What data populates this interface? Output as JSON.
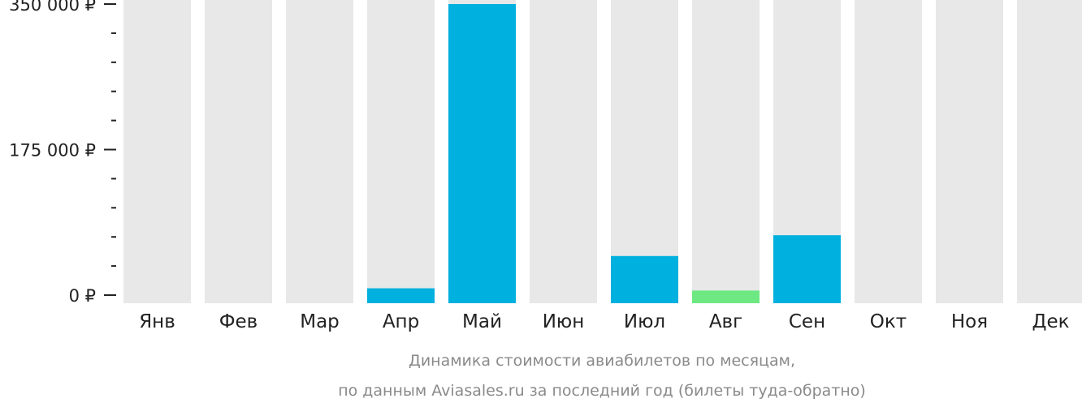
{
  "chart_data": {
    "type": "bar",
    "categories": [
      "Янв",
      "Фев",
      "Мар",
      "Апр",
      "Май",
      "Июн",
      "Июл",
      "Авг",
      "Сен",
      "Окт",
      "Ноя",
      "Дек"
    ],
    "values": [
      0,
      0,
      0,
      8200,
      350000,
      0,
      47000,
      5500,
      72000,
      0,
      0,
      0
    ],
    "ylim": [
      0,
      350000
    ],
    "yticks": [
      {
        "value": 0,
        "label": "0 ₽"
      },
      {
        "value": 175000,
        "label": "175 000 ₽"
      },
      {
        "value": 350000,
        "label": "350 000 ₽"
      }
    ],
    "minor_tick_step": 35000,
    "highlight_index": 7,
    "grid": false,
    "caption_lines": [
      "Динамика стоимости авиабилетов  по месяцам,",
      "по данным Aviasales.ru за последний год (билеты туда-обратно)"
    ]
  },
  "colors": {
    "background_bar": "#e8e8e8",
    "bar": "#00b0de",
    "highlight_bar": "#6ee882",
    "axis": "#222222",
    "caption": "#8a8a8a"
  }
}
